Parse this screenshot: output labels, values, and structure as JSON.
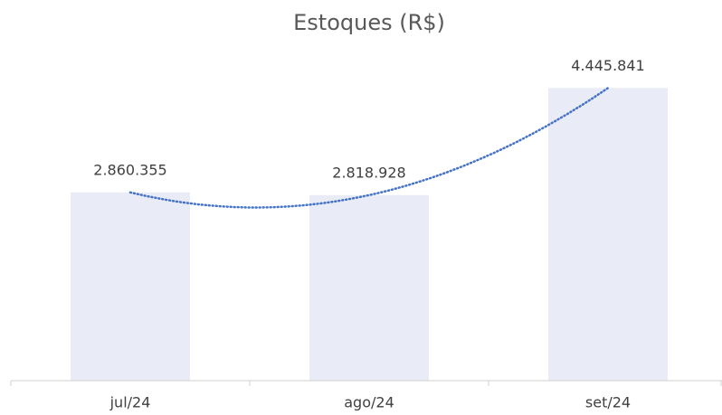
{
  "chart_data": {
    "type": "bar",
    "title": "Estoques (R$)",
    "categories": [
      "jul/24",
      "ago/24",
      "set/24"
    ],
    "values": [
      2860355,
      2818928,
      4445841
    ],
    "value_labels": [
      "2.860.355",
      "2.818.928",
      "4.445.841"
    ],
    "color": "#e9ebf6",
    "ylim": [
      0,
      5000000
    ],
    "trendline": {
      "type": "polynomial",
      "color": "#4472c4"
    }
  }
}
